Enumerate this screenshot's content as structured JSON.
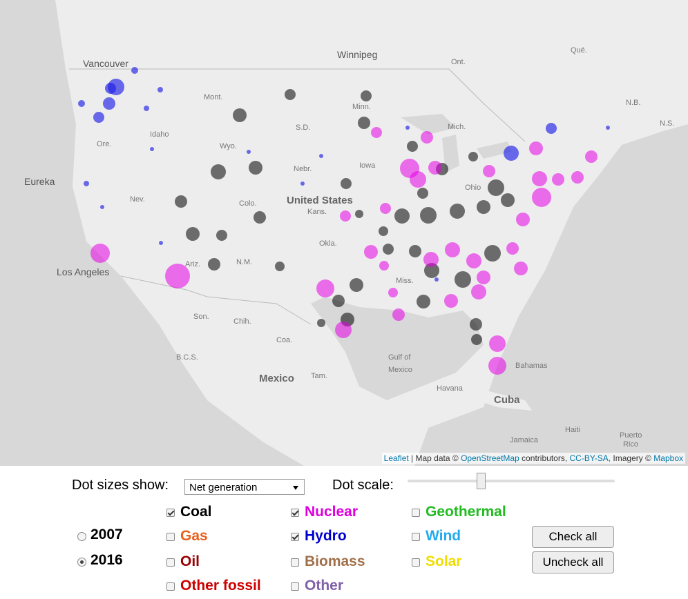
{
  "map": {
    "labels": [
      "Vancouver",
      "Winnipeg",
      "Eureka",
      "Los Angeles",
      "United States",
      "Mexico",
      "Gulf of",
      "Mexico",
      "Havana",
      "Cuba",
      "Bahamas",
      "Jamaica",
      "Haiti",
      "Puerto",
      "Rico",
      "Qué.",
      "Ont.",
      "Mont.",
      "Idaho",
      "Ore.",
      "Wyo.",
      "Nev.",
      "S.D.",
      "Nebr.",
      "Colo.",
      "Kans.",
      "Iowa",
      "Minn.",
      "Mich.",
      "Ohio",
      "Okla.",
      "Ariz.",
      "N.M.",
      "Miss.",
      "Son.",
      "Chih.",
      "Coa.",
      "N.B.",
      "N.S.",
      "B.C.S.",
      "Tam."
    ],
    "attribution": {
      "leaflet": "Leaflet",
      "text1": "| Map data ©",
      "osm": "OpenStreetMap",
      "text2": "contributors,",
      "license": "CC-BY-SA,",
      "text3": "Imagery ©",
      "mapbox": "Mapbox"
    }
  },
  "controls": {
    "size_control": {
      "label": "Dot sizes show:",
      "selected": "Net generation"
    },
    "scale_control": {
      "label": "Dot scale:"
    },
    "years": [
      {
        "label": "2007",
        "selected": false
      },
      {
        "label": "2016",
        "selected": true
      }
    ],
    "sources": [
      {
        "label": "Coal",
        "checked": true,
        "color": "#000000"
      },
      {
        "label": "Gas",
        "checked": false,
        "color": "#e8601c"
      },
      {
        "label": "Oil",
        "checked": false,
        "color": "#990000"
      },
      {
        "label": "Other fossil",
        "checked": false,
        "color": "#cc0000"
      },
      {
        "label": "Nuclear",
        "checked": true,
        "color": "#dd00dd"
      },
      {
        "label": "Hydro",
        "checked": true,
        "color": "#0000cc"
      },
      {
        "label": "Biomass",
        "checked": false,
        "color": "#a0704a"
      },
      {
        "label": "Other",
        "checked": false,
        "color": "#8060a8"
      },
      {
        "label": "Geothermal",
        "checked": false,
        "color": "#22bb22"
      },
      {
        "label": "Wind",
        "checked": false,
        "color": "#22aaee"
      },
      {
        "label": "Solar",
        "checked": false,
        "color": "#f0dd00"
      }
    ],
    "buttons": [
      "Check all",
      "Uncheck all"
    ]
  }
}
